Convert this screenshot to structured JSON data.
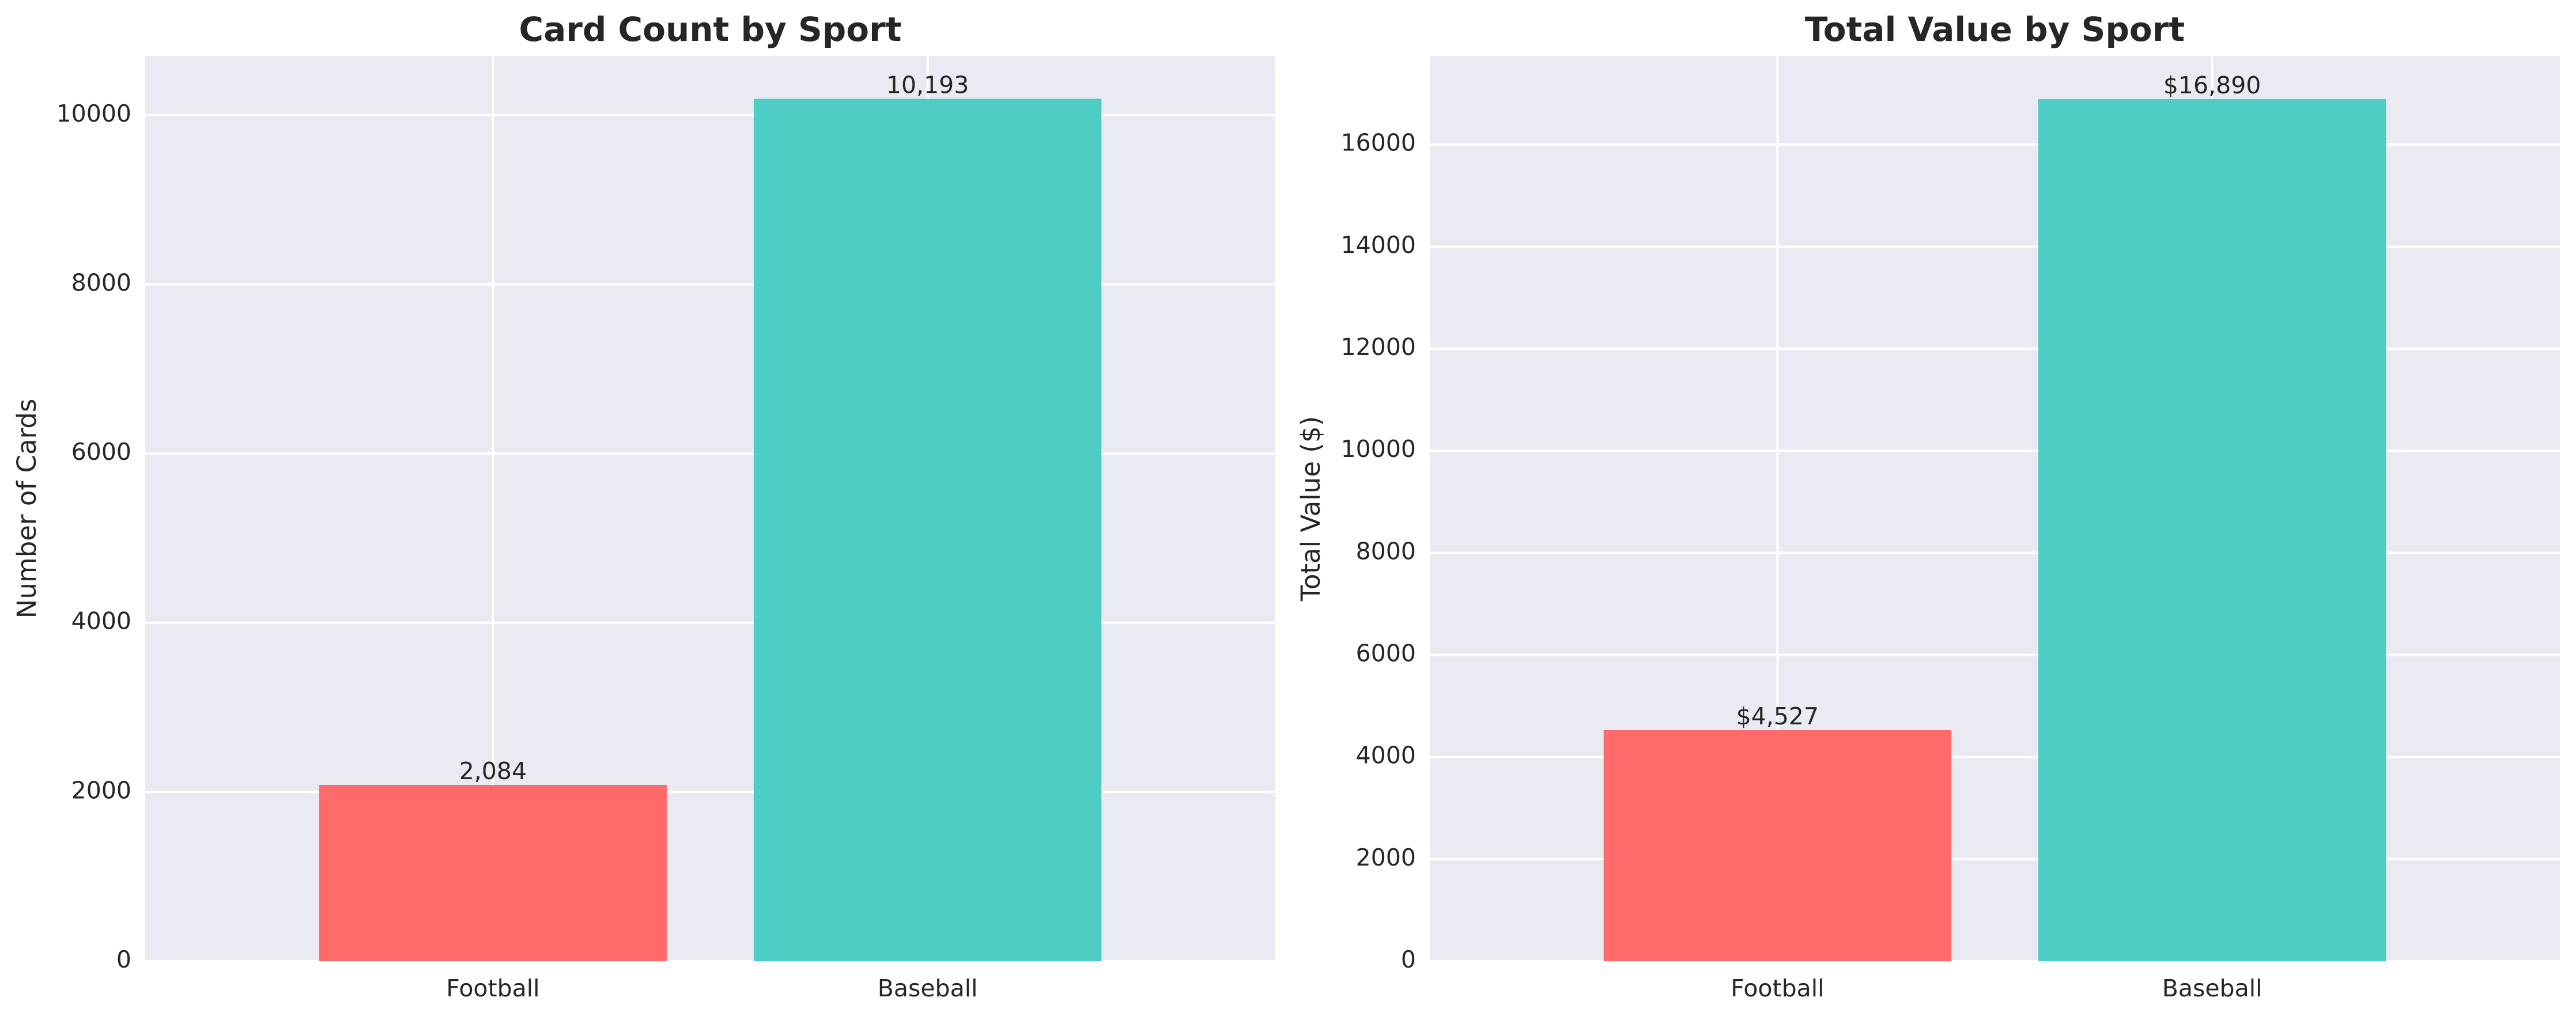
{
  "chart_data": [
    {
      "type": "bar",
      "title": "Card Count by Sport",
      "xlabel": "",
      "ylabel": "Number of Cards",
      "categories": [
        "Football",
        "Baseball"
      ],
      "values": [
        2084,
        10193
      ],
      "data_labels": [
        "2,084",
        "10,193"
      ],
      "colors": [
        "#ff6b6b",
        "#4ecdc4"
      ],
      "ylim": [
        0,
        10700
      ],
      "yticks": [
        0,
        2000,
        4000,
        6000,
        8000,
        10000
      ],
      "grid": true
    },
    {
      "type": "bar",
      "title": "Total Value by Sport",
      "xlabel": "",
      "ylabel": "Total Value ($)",
      "categories": [
        "Football",
        "Baseball"
      ],
      "values": [
        4527,
        16890
      ],
      "data_labels": [
        "$4,527",
        "$16,890"
      ],
      "colors": [
        "#ff6b6b",
        "#4ecdc4"
      ],
      "ylim": [
        0,
        17735
      ],
      "yticks": [
        0,
        2000,
        4000,
        6000,
        8000,
        10000,
        12000,
        14000,
        16000
      ],
      "grid": true
    }
  ]
}
